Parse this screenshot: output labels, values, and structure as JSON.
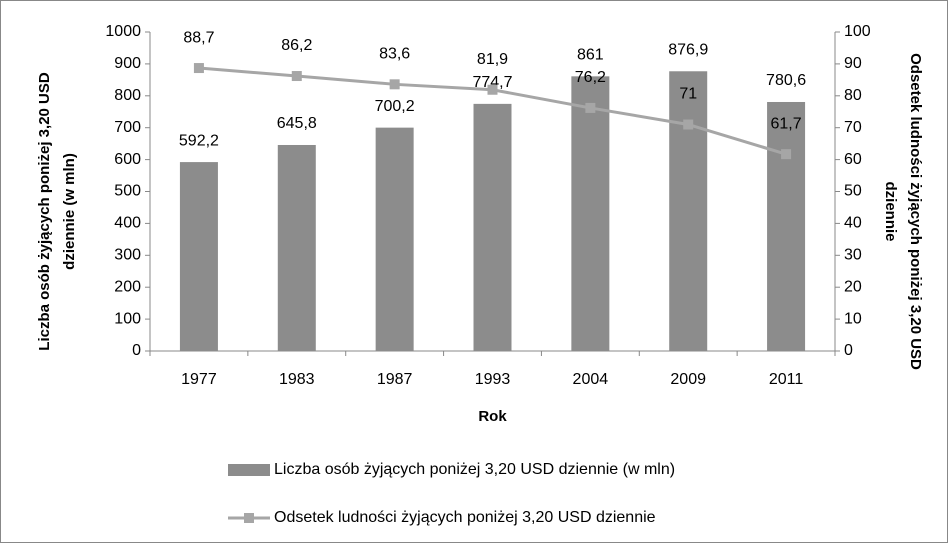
{
  "chart_data": {
    "type": "bar",
    "categories": [
      "1977",
      "1983",
      "1987",
      "1993",
      "2004",
      "2009",
      "2011"
    ],
    "series": [
      {
        "name": "Liczba osób żyjących poniżej 3,20 USD dziennie (w mln)",
        "type": "bar",
        "color": "#8c8c8c",
        "values": [
          592.2,
          645.8,
          700.2,
          774.7,
          861,
          876.9,
          780.6
        ],
        "value_labels": [
          "592,2",
          "645,8",
          "700,2",
          "774,7",
          "861",
          "876,9",
          "780,6"
        ]
      },
      {
        "name": "Odsetek ludności żyjących poniżej 3,20 USD dziennie",
        "type": "line",
        "axis": "y2",
        "color": "#a6a6a6",
        "values": [
          88.7,
          86.2,
          83.6,
          81.9,
          76.2,
          71,
          61.7
        ],
        "value_labels": [
          "88,7",
          "86,2",
          "83,6",
          "81,9",
          "76,2",
          "71",
          "61,7"
        ]
      }
    ],
    "xlabel": "Rok",
    "ylabel": "Liczba osób żyjących poniżej 3,20 USD dziennie (w mln)",
    "y2label": "Odsetek ludności żyjących poniżej 3,20 USD dziennie",
    "ylim": [
      0,
      1000
    ],
    "yticks": [
      0,
      100,
      200,
      300,
      400,
      500,
      600,
      700,
      800,
      900,
      1000
    ],
    "y2lim": [
      0,
      100
    ],
    "y2ticks": [
      0,
      10,
      20,
      30,
      40,
      50,
      60,
      70,
      80,
      90,
      100
    ],
    "grid": false,
    "legend": "bottom"
  }
}
